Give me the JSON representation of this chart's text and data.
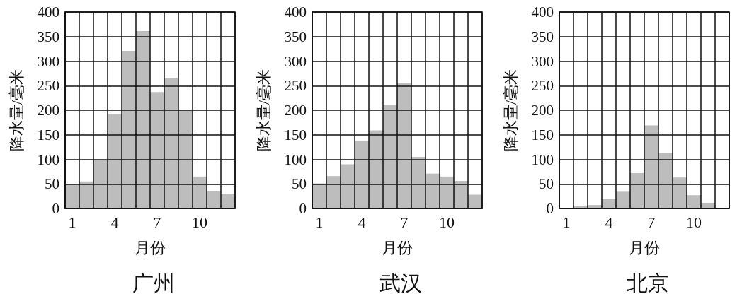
{
  "chart_data": [
    {
      "type": "bar",
      "title": "广州",
      "xlabel": "月份",
      "ylabel": "降水量/毫米",
      "categories": [
        "1",
        null,
        null,
        "4",
        null,
        null,
        "7",
        null,
        null,
        "10",
        null,
        null
      ],
      "values": [
        49,
        55,
        98,
        192,
        321,
        361,
        237,
        266,
        200,
        65,
        35,
        30
      ],
      "color": "#bdbdbd",
      "ylim": [
        0,
        400
      ],
      "yticks": [
        0,
        50,
        100,
        150,
        200,
        250,
        300,
        350,
        400
      ],
      "grid": true
    },
    {
      "type": "bar",
      "title": "武汉",
      "xlabel": "月份",
      "ylabel": "降水量/毫米",
      "categories": [
        "1",
        null,
        null,
        "4",
        null,
        null,
        "7",
        null,
        null,
        "10",
        null,
        null
      ],
      "values": [
        51,
        66,
        90,
        137,
        159,
        211,
        255,
        105,
        71,
        65,
        56,
        28
      ],
      "color": "#bdbdbd",
      "ylim": [
        0,
        400
      ],
      "yticks": [
        0,
        50,
        100,
        150,
        200,
        250,
        300,
        350,
        400
      ],
      "grid": true
    },
    {
      "type": "bar",
      "title": "北京",
      "xlabel": "月份",
      "ylabel": "降水量/毫米",
      "categories": [
        "1",
        null,
        null,
        "4",
        null,
        null,
        "7",
        null,
        null,
        "10",
        null,
        null
      ],
      "values": [
        0,
        5,
        7,
        19,
        34,
        72,
        169,
        113,
        63,
        27,
        11,
        0
      ],
      "color": "#bdbdbd",
      "ylim": [
        0,
        400
      ],
      "yticks": [
        0,
        50,
        100,
        150,
        200,
        250,
        300,
        350,
        400
      ],
      "grid": true
    }
  ]
}
